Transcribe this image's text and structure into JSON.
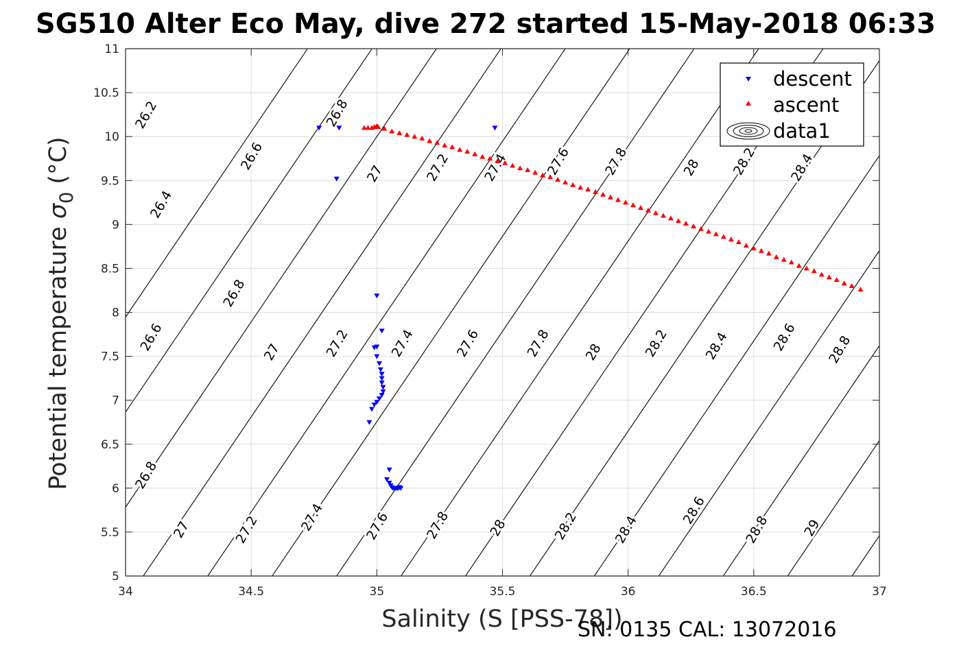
{
  "chart_data": {
    "type": "scatter",
    "title": "SG510 Alter Eco May, dive 272 started 15-May-2018 06:33",
    "xlabel": "Salinity (S [PSS-78])",
    "ylabel_main": "Potential temperature",
    "ylabel_sym": "σ",
    "ylabel_sub": "0",
    "ylabel_unit": " (°C)",
    "footer": "SN: 0135  CAL: 13072016",
    "xlim": [
      34,
      37
    ],
    "ylim": [
      5,
      11
    ],
    "x_ticks": [
      "34",
      "34.5",
      "35",
      "35.5",
      "36",
      "36.5",
      "37"
    ],
    "y_ticks": [
      "5",
      "5.5",
      "6",
      "6.5",
      "7",
      "7.5",
      "8",
      "8.5",
      "9",
      "9.5",
      "10",
      "10.5",
      "11"
    ],
    "grid": true,
    "legend_position": "top-right",
    "legend": [
      "descent",
      "ascent",
      "data1"
    ],
    "colors": {
      "descent": "#0000ff",
      "ascent": "#ff0000",
      "contour": "#000000",
      "grid": "#dcdcdc"
    },
    "contour_levels": [
      "26.2",
      "26.4",
      "26.6",
      "26.8",
      "27",
      "27.2",
      "27.4",
      "27.6",
      "27.8",
      "28",
      "28.2",
      "28.4",
      "28.6",
      "28.8",
      "29"
    ],
    "contour_labels": [
      {
        "text": "26.2",
        "s": 34.08,
        "t": 10.25
      },
      {
        "text": "26.8",
        "s": 34.84,
        "t": 10.27
      },
      {
        "text": "26.6",
        "s": 34.5,
        "t": 9.78
      },
      {
        "text": "26.4",
        "s": 34.14,
        "t": 9.23
      },
      {
        "text": "27",
        "s": 34.99,
        "t": 9.58
      },
      {
        "text": "27.2",
        "s": 35.24,
        "t": 9.65
      },
      {
        "text": "27.4",
        "s": 35.47,
        "t": 9.65
      },
      {
        "text": "27.6",
        "s": 35.72,
        "t": 9.72
      },
      {
        "text": "27.8",
        "s": 35.95,
        "t": 9.72
      },
      {
        "text": "28",
        "s": 36.25,
        "t": 9.65
      },
      {
        "text": "28.2",
        "s": 36.46,
        "t": 9.72
      },
      {
        "text": "28.4",
        "s": 36.69,
        "t": 9.65
      },
      {
        "text": "26.8",
        "s": 34.43,
        "t": 8.22
      },
      {
        "text": "26.6",
        "s": 34.1,
        "t": 7.72
      },
      {
        "text": "27",
        "s": 34.58,
        "t": 7.55
      },
      {
        "text": "27.2",
        "s": 34.84,
        "t": 7.65
      },
      {
        "text": "27.4",
        "s": 35.1,
        "t": 7.65
      },
      {
        "text": "27.6",
        "s": 35.36,
        "t": 7.65
      },
      {
        "text": "27.8",
        "s": 35.64,
        "t": 7.65
      },
      {
        "text": "28",
        "s": 35.86,
        "t": 7.55
      },
      {
        "text": "28.2",
        "s": 36.11,
        "t": 7.65
      },
      {
        "text": "28.4",
        "s": 36.35,
        "t": 7.62
      },
      {
        "text": "28.6",
        "s": 36.62,
        "t": 7.72
      },
      {
        "text": "28.8",
        "s": 36.84,
        "t": 7.58
      },
      {
        "text": "26.8",
        "s": 34.08,
        "t": 6.15
      },
      {
        "text": "27",
        "s": 34.22,
        "t": 5.53
      },
      {
        "text": "27.2",
        "s": 34.48,
        "t": 5.53
      },
      {
        "text": "27.4",
        "s": 34.74,
        "t": 5.67
      },
      {
        "text": "27.6",
        "s": 35.0,
        "t": 5.57
      },
      {
        "text": "27.8",
        "s": 35.24,
        "t": 5.58
      },
      {
        "text": "28",
        "s": 35.48,
        "t": 5.55
      },
      {
        "text": "28.2",
        "s": 35.75,
        "t": 5.57
      },
      {
        "text": "28.4",
        "s": 35.99,
        "t": 5.53
      },
      {
        "text": "28.6",
        "s": 36.26,
        "t": 5.75
      },
      {
        "text": "28.8",
        "s": 36.51,
        "t": 5.53
      },
      {
        "text": "29",
        "s": 36.73,
        "t": 5.55
      }
    ],
    "series": [
      {
        "name": "descent",
        "marker": "triangle-down",
        "points": [
          [
            34.77,
            10.1
          ],
          [
            34.85,
            10.1
          ],
          [
            35.47,
            10.1
          ],
          [
            34.84,
            9.52
          ],
          [
            35.0,
            8.19
          ],
          [
            35.02,
            7.79
          ],
          [
            35.0,
            7.61
          ],
          [
            34.99,
            7.6
          ],
          [
            35.0,
            7.5
          ],
          [
            35.01,
            7.42
          ],
          [
            35.015,
            7.35
          ],
          [
            35.02,
            7.3
          ],
          [
            35.02,
            7.25
          ],
          [
            35.02,
            7.2
          ],
          [
            35.025,
            7.15
          ],
          [
            35.025,
            7.1
          ],
          [
            35.02,
            7.06
          ],
          [
            35.01,
            7.02
          ],
          [
            35.0,
            6.98
          ],
          [
            34.99,
            6.95
          ],
          [
            34.98,
            6.9
          ],
          [
            34.97,
            6.75
          ],
          [
            35.05,
            6.21
          ],
          [
            35.04,
            6.1
          ],
          [
            35.05,
            6.06
          ],
          [
            35.055,
            6.03
          ],
          [
            35.06,
            6.01
          ],
          [
            35.065,
            6.0
          ],
          [
            35.07,
            6.0
          ],
          [
            35.075,
            6.0
          ],
          [
            35.08,
            6.0
          ],
          [
            35.085,
            6.0
          ],
          [
            35.09,
            6.01
          ],
          [
            35.095,
            6.0
          ]
        ]
      },
      {
        "name": "ascent",
        "marker": "triangle-up",
        "points": [
          [
            34.95,
            10.1
          ],
          [
            34.965,
            10.1
          ],
          [
            34.98,
            10.1
          ],
          [
            34.99,
            10.11
          ],
          [
            35.0,
            10.12
          ],
          [
            35.005,
            10.11
          ],
          [
            35.03,
            10.09
          ],
          [
            35.06,
            10.06
          ],
          [
            35.09,
            10.04
          ],
          [
            35.12,
            10.02
          ],
          [
            35.15,
            10.0
          ],
          [
            35.18,
            9.98
          ],
          [
            35.21,
            9.95
          ],
          [
            35.24,
            9.93
          ],
          [
            35.27,
            9.9
          ],
          [
            35.3,
            9.88
          ],
          [
            35.33,
            9.85
          ],
          [
            35.36,
            9.83
          ],
          [
            35.39,
            9.8
          ],
          [
            35.42,
            9.77
          ],
          [
            35.45,
            9.75
          ],
          [
            35.48,
            9.72
          ],
          [
            35.51,
            9.7
          ],
          [
            35.54,
            9.67
          ],
          [
            35.57,
            9.64
          ],
          [
            35.6,
            9.62
          ],
          [
            35.63,
            9.59
          ],
          [
            35.66,
            9.56
          ],
          [
            35.69,
            9.54
          ],
          [
            35.72,
            9.51
          ],
          [
            35.75,
            9.48
          ],
          [
            35.78,
            9.45
          ],
          [
            35.81,
            9.42
          ],
          [
            35.84,
            9.4
          ],
          [
            35.87,
            9.37
          ],
          [
            35.9,
            9.34
          ],
          [
            35.93,
            9.31
          ],
          [
            35.96,
            9.28
          ],
          [
            35.99,
            9.25
          ],
          [
            36.02,
            9.22
          ],
          [
            36.05,
            9.19
          ],
          [
            36.08,
            9.16
          ],
          [
            36.11,
            9.13
          ],
          [
            36.14,
            9.1
          ],
          [
            36.17,
            9.07
          ],
          [
            36.2,
            9.04
          ],
          [
            36.23,
            9.01
          ],
          [
            36.26,
            8.98
          ],
          [
            36.29,
            8.95
          ],
          [
            36.32,
            8.92
          ],
          [
            36.35,
            8.89
          ],
          [
            36.38,
            8.86
          ],
          [
            36.41,
            8.83
          ],
          [
            36.44,
            8.8
          ],
          [
            36.47,
            8.76
          ],
          [
            36.5,
            8.73
          ],
          [
            36.53,
            8.7
          ],
          [
            36.56,
            8.67
          ],
          [
            36.59,
            8.63
          ],
          [
            36.62,
            8.6
          ],
          [
            36.65,
            8.57
          ],
          [
            36.68,
            8.53
          ],
          [
            36.71,
            8.5
          ],
          [
            36.74,
            8.47
          ],
          [
            36.77,
            8.43
          ],
          [
            36.8,
            8.4
          ],
          [
            36.83,
            8.37
          ],
          [
            36.86,
            8.33
          ],
          [
            36.89,
            8.3
          ],
          [
            36.925,
            8.26
          ]
        ]
      }
    ]
  }
}
